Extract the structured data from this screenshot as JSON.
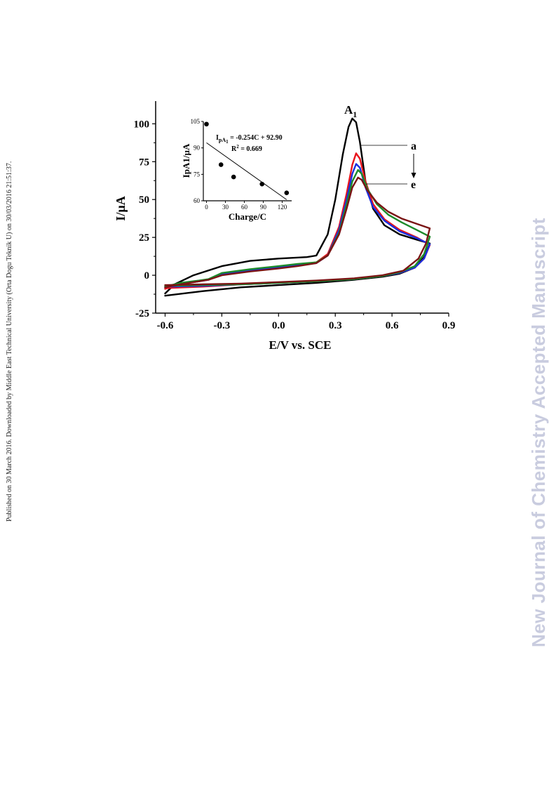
{
  "side_note": "Published on 30 March 2016. Downloaded by Middle East Technical University (Orta Dogu Teknik U) on 30/03/2016 21:51:37.",
  "watermark": "New Journal of Chemistry Accepted Manuscript",
  "colors": {
    "a": "#000000",
    "b": "#e8141c",
    "c": "#1a2fe0",
    "d": "#1c8a2a",
    "e": "#7a1414",
    "axis": "#000000"
  },
  "chart_data": [
    {
      "type": "line",
      "title": "",
      "xlabel": "E/V vs. SCE",
      "ylabel": "I/µA",
      "xlim": [
        -0.65,
        0.9
      ],
      "ylim": [
        -25,
        115
      ],
      "xticks": [
        -0.6,
        -0.3,
        0.0,
        0.3,
        0.6,
        0.9
      ],
      "xtick_labels": [
        "-0.6",
        "-0.3",
        "0.0",
        "0.3",
        "0.6",
        "0.9"
      ],
      "yticks": [
        -25,
        0,
        25,
        50,
        75,
        100
      ],
      "ytick_labels": [
        "-25",
        "0",
        "25",
        "50",
        "75",
        "100"
      ],
      "grid": false,
      "peak_label": "A",
      "peak_label_sub": "1",
      "annotation_top": "a",
      "annotation_bottom": "e",
      "series": [
        {
          "id": "a",
          "peak_E": 0.39,
          "peak_I": 103.5,
          "end_I": 21,
          "forward": [
            [
              -0.6,
              -12
            ],
            [
              -0.55,
              -6
            ],
            [
              -0.45,
              0
            ],
            [
              -0.3,
              6
            ],
            [
              -0.15,
              9.5
            ],
            [
              0.0,
              11
            ],
            [
              0.15,
              12
            ],
            [
              0.2,
              13
            ],
            [
              0.26,
              27
            ],
            [
              0.3,
              50
            ],
            [
              0.34,
              80
            ],
            [
              0.37,
              98
            ],
            [
              0.39,
              103.5
            ],
            [
              0.41,
              101
            ],
            [
              0.43,
              88
            ],
            [
              0.46,
              62
            ],
            [
              0.5,
              44
            ],
            [
              0.56,
              33
            ],
            [
              0.64,
              27
            ],
            [
              0.73,
              23.5
            ],
            [
              0.8,
              21
            ]
          ],
          "reverse": [
            [
              0.8,
              21
            ],
            [
              0.77,
              12
            ],
            [
              0.72,
              5
            ],
            [
              0.64,
              1
            ],
            [
              0.55,
              -1
            ],
            [
              0.4,
              -3
            ],
            [
              0.2,
              -5
            ],
            [
              0.0,
              -6.5
            ],
            [
              -0.2,
              -8
            ],
            [
              -0.4,
              -10.5
            ],
            [
              -0.6,
              -13.5
            ]
          ]
        },
        {
          "id": "b",
          "peak_E": 0.41,
          "peak_I": 80.5,
          "end_I": 20,
          "forward": [
            [
              -0.6,
              -9
            ],
            [
              -0.52,
              -6
            ],
            [
              -0.42,
              -4
            ],
            [
              -0.37,
              -3
            ],
            [
              -0.3,
              1
            ],
            [
              -0.15,
              3
            ],
            [
              0.0,
              5.5
            ],
            [
              0.1,
              7
            ],
            [
              0.2,
              8.5
            ],
            [
              0.26,
              14
            ],
            [
              0.32,
              32
            ],
            [
              0.36,
              54
            ],
            [
              0.39,
              73
            ],
            [
              0.41,
              80.5
            ],
            [
              0.43,
              77
            ],
            [
              0.46,
              62
            ],
            [
              0.5,
              47
            ],
            [
              0.56,
              37
            ],
            [
              0.64,
              30
            ],
            [
              0.73,
              25
            ],
            [
              0.8,
              20
            ]
          ],
          "reverse": [
            [
              0.8,
              20
            ],
            [
              0.77,
              11
            ],
            [
              0.72,
              5
            ],
            [
              0.64,
              1.5
            ],
            [
              0.55,
              -0.5
            ],
            [
              0.4,
              -2.5
            ],
            [
              0.2,
              -4
            ],
            [
              0.0,
              -5
            ],
            [
              -0.2,
              -6
            ],
            [
              -0.4,
              -7.5
            ],
            [
              -0.6,
              -8.5
            ]
          ]
        },
        {
          "id": "c",
          "peak_E": 0.41,
          "peak_I": 73.5,
          "end_I": 20.5,
          "forward": [
            [
              -0.6,
              -8
            ],
            [
              -0.52,
              -5.5
            ],
            [
              -0.42,
              -4
            ],
            [
              -0.37,
              -3
            ],
            [
              -0.3,
              1
            ],
            [
              -0.15,
              3
            ],
            [
              0.0,
              5.5
            ],
            [
              0.1,
              7
            ],
            [
              0.2,
              8
            ],
            [
              0.26,
              13
            ],
            [
              0.32,
              30
            ],
            [
              0.36,
              50
            ],
            [
              0.39,
              67
            ],
            [
              0.41,
              73.5
            ],
            [
              0.43,
              71
            ],
            [
              0.46,
              58
            ],
            [
              0.5,
              45
            ],
            [
              0.56,
              36
            ],
            [
              0.64,
              29
            ],
            [
              0.73,
              24.5
            ],
            [
              0.8,
              20.5
            ]
          ],
          "reverse": [
            [
              0.8,
              20.5
            ],
            [
              0.77,
              11
            ],
            [
              0.72,
              5
            ],
            [
              0.64,
              1.5
            ],
            [
              0.55,
              -0.5
            ],
            [
              0.4,
              -2.5
            ],
            [
              0.2,
              -4
            ],
            [
              0.0,
              -5
            ],
            [
              -0.2,
              -6
            ],
            [
              -0.4,
              -7
            ],
            [
              -0.6,
              -7.5
            ]
          ]
        },
        {
          "id": "d",
          "peak_E": 0.42,
          "peak_I": 69.5,
          "end_I": 25.5,
          "forward": [
            [
              -0.6,
              -7.5
            ],
            [
              -0.52,
              -5
            ],
            [
              -0.42,
              -3.5
            ],
            [
              -0.37,
              -2.5
            ],
            [
              -0.3,
              1.5
            ],
            [
              -0.15,
              4
            ],
            [
              0.0,
              6
            ],
            [
              0.1,
              7.5
            ],
            [
              0.2,
              8.5
            ],
            [
              0.26,
              13
            ],
            [
              0.32,
              28
            ],
            [
              0.36,
              47
            ],
            [
              0.39,
              62
            ],
            [
              0.42,
              69.5
            ],
            [
              0.44,
              67
            ],
            [
              0.47,
              57
            ],
            [
              0.52,
              47
            ],
            [
              0.58,
              40
            ],
            [
              0.65,
              35
            ],
            [
              0.73,
              30
            ],
            [
              0.8,
              25.5
            ]
          ],
          "reverse": [
            [
              0.8,
              25.5
            ],
            [
              0.77,
              14
            ],
            [
              0.72,
              6
            ],
            [
              0.64,
              2
            ],
            [
              0.55,
              -0.5
            ],
            [
              0.4,
              -2.5
            ],
            [
              0.2,
              -4
            ],
            [
              0.0,
              -5
            ],
            [
              -0.2,
              -6
            ],
            [
              -0.4,
              -6.5
            ],
            [
              -0.6,
              -7
            ]
          ]
        },
        {
          "id": "e",
          "peak_E": 0.42,
          "peak_I": 64.5,
          "end_I": 31,
          "forward": [
            [
              -0.6,
              -8
            ],
            [
              -0.52,
              -6
            ],
            [
              -0.42,
              -4
            ],
            [
              -0.37,
              -3
            ],
            [
              -0.3,
              0
            ],
            [
              -0.15,
              2.5
            ],
            [
              0.0,
              4.5
            ],
            [
              0.1,
              6
            ],
            [
              0.2,
              8
            ],
            [
              0.26,
              13
            ],
            [
              0.32,
              27
            ],
            [
              0.36,
              44
            ],
            [
              0.39,
              58
            ],
            [
              0.42,
              64.5
            ],
            [
              0.44,
              63
            ],
            [
              0.47,
              56
            ],
            [
              0.52,
              48
            ],
            [
              0.58,
              42
            ],
            [
              0.65,
              37.5
            ],
            [
              0.73,
              34
            ],
            [
              0.8,
              31
            ]
          ],
          "reverse": [
            [
              0.8,
              31
            ],
            [
              0.78,
              21
            ],
            [
              0.74,
              11
            ],
            [
              0.66,
              3
            ],
            [
              0.55,
              0
            ],
            [
              0.4,
              -2
            ],
            [
              0.2,
              -3.5
            ],
            [
              0.0,
              -4.5
            ],
            [
              -0.2,
              -5.5
            ],
            [
              -0.4,
              -6
            ],
            [
              -0.6,
              -6.5
            ]
          ]
        }
      ]
    },
    {
      "type": "scatter",
      "title": "",
      "xlabel": "Charge/C",
      "ylabel": "IpA1/µA",
      "xlim": [
        -5,
        135
      ],
      "ylim": [
        60,
        105
      ],
      "xticks": [
        0,
        30,
        60,
        90,
        120
      ],
      "xtick_labels": [
        "0",
        "30",
        "60",
        "90",
        "120"
      ],
      "yticks": [
        60,
        75,
        90,
        105
      ],
      "ytick_labels": [
        "60",
        "75",
        "90",
        "105"
      ],
      "x": [
        0,
        23,
        43,
        88,
        127
      ],
      "y": [
        103.5,
        80.5,
        73.5,
        69.5,
        64.5
      ],
      "fit": {
        "slope": -0.254,
        "intercept": 92.9,
        "x_range": [
          0,
          127
        ],
        "equation_main": "I",
        "equation_sub": "pA",
        "equation_subsub": "1",
        "equation_rest": " = -0.254C + 92.90",
        "r2_label": "R",
        "r2_sup": "2",
        "r2_rest": " = 0.669"
      }
    }
  ]
}
